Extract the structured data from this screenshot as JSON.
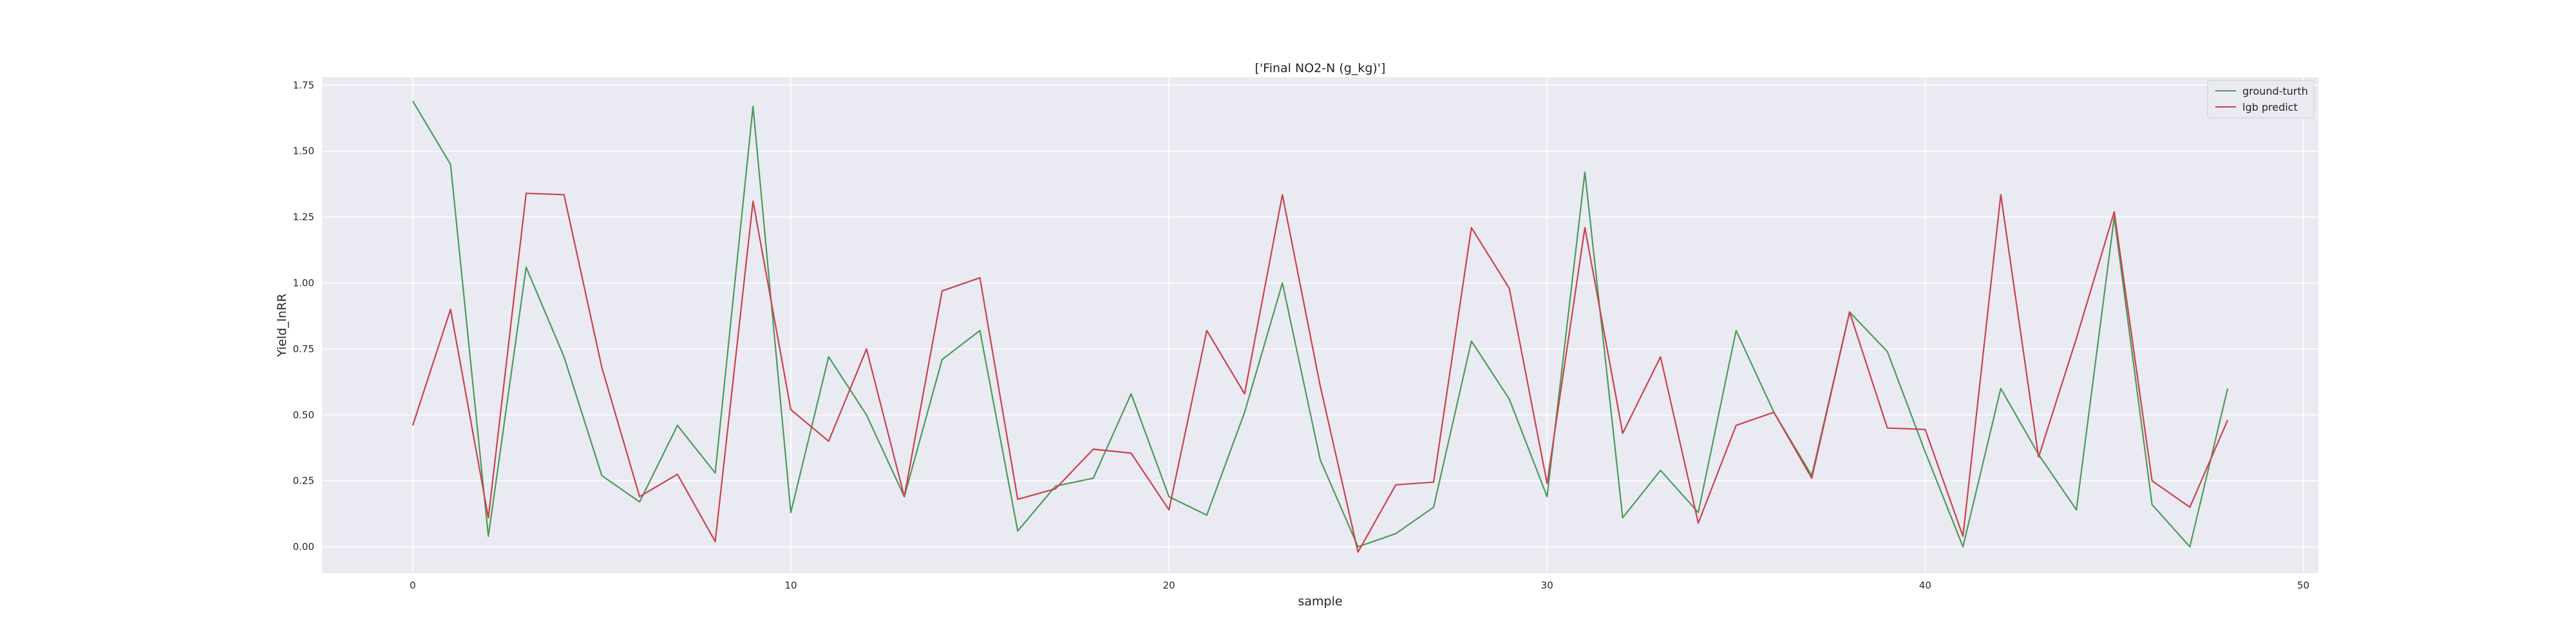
{
  "chart_data": {
    "type": "line",
    "title": "['Final NO2-N (g_kg)']",
    "xlabel": "sample",
    "ylabel": "Yield_lnRR",
    "xlim": [
      -2.4,
      50.4
    ],
    "ylim": [
      -0.1,
      1.78
    ],
    "xticks": [
      0,
      10,
      20,
      30,
      40,
      50
    ],
    "yticks": [
      0.0,
      0.25,
      0.5,
      0.75,
      1.0,
      1.25,
      1.5,
      1.75
    ],
    "ytick_labels": [
      "0.00",
      "0.25",
      "0.50",
      "0.75",
      "1.00",
      "1.25",
      "1.50",
      "1.75"
    ],
    "grid": true,
    "legend_position": "top-right",
    "x": [
      0,
      1,
      2,
      3,
      4,
      5,
      6,
      7,
      8,
      9,
      10,
      11,
      12,
      13,
      14,
      15,
      16,
      17,
      18,
      19,
      20,
      21,
      22,
      23,
      24,
      25,
      26,
      27,
      28,
      29,
      30,
      31,
      32,
      33,
      34,
      35,
      36,
      37,
      38,
      39,
      40,
      41,
      42,
      43,
      44,
      45,
      46,
      47,
      48
    ],
    "series": [
      {
        "name": "ground-turth",
        "color": "#4c9a5a",
        "values": [
          1.69,
          1.45,
          0.04,
          1.06,
          0.72,
          0.27,
          0.17,
          0.46,
          0.28,
          1.67,
          0.13,
          0.72,
          0.5,
          0.19,
          0.71,
          0.82,
          0.06,
          0.23,
          0.26,
          0.58,
          0.19,
          0.12,
          0.51,
          1.0,
          0.33,
          0.0,
          0.05,
          0.15,
          0.78,
          0.56,
          0.19,
          1.42,
          0.11,
          0.29,
          0.13,
          0.82,
          0.51,
          0.27,
          0.89,
          0.74,
          0.36,
          0.0,
          0.6,
          0.35,
          0.14,
          1.25,
          0.16,
          0.0,
          0.6
        ]
      },
      {
        "name": "lgb predict",
        "color": "#c9424b",
        "values": [
          0.46,
          0.9,
          0.11,
          1.34,
          1.335,
          0.68,
          0.19,
          0.275,
          0.02,
          1.31,
          0.52,
          0.4,
          0.75,
          0.19,
          0.97,
          1.02,
          0.18,
          0.22,
          0.37,
          0.355,
          0.14,
          0.82,
          0.58,
          1.335,
          0.61,
          -0.02,
          0.235,
          0.245,
          1.21,
          0.98,
          0.24,
          1.21,
          0.43,
          0.72,
          0.09,
          0.46,
          0.51,
          0.26,
          0.89,
          0.45,
          0.445,
          0.04,
          1.335,
          0.34,
          0.79,
          1.27,
          0.25,
          0.15,
          0.48
        ]
      }
    ]
  }
}
